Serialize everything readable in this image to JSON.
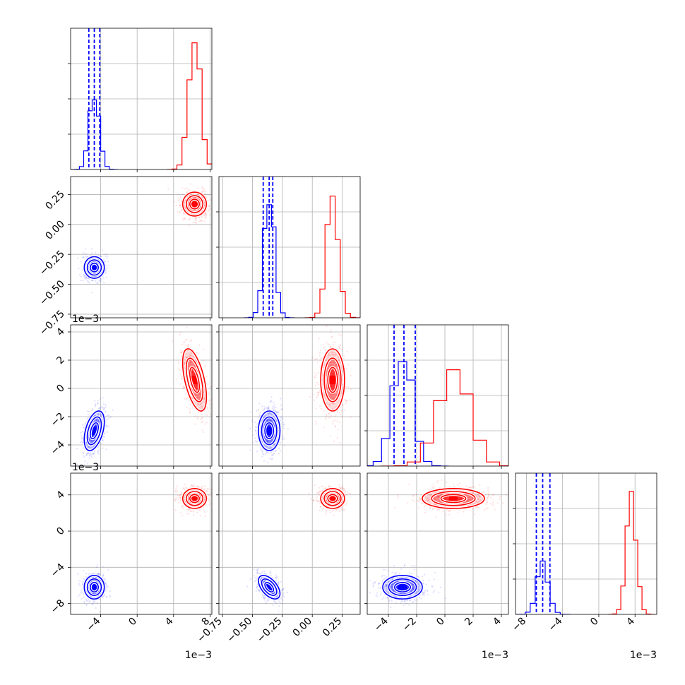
{
  "chart_data": {
    "type": "corner",
    "grid": true,
    "params": [
      {
        "ticks": [
          -4,
          0,
          4,
          8
        ],
        "tick_labels": [
          "−4",
          "0",
          "4",
          "8"
        ],
        "offset_text": "1e−3",
        "range": [
          -7.3,
          8.2
        ]
      },
      {
        "ticks": [
          -0.75,
          -0.5,
          -0.25,
          0.0,
          0.25
        ],
        "tick_labels": [
          "−0.75",
          "−0.50",
          "−0.25",
          "0.00",
          "0.25"
        ],
        "offset_text": "",
        "range": [
          -0.78,
          0.4
        ]
      },
      {
        "ticks": [
          -4,
          -2,
          0,
          2,
          4
        ],
        "tick_labels": [
          "−4",
          "−2",
          "0",
          "2",
          "4"
        ],
        "offset_text": "1e−3",
        "range": [
          -5.5,
          4.5
        ]
      },
      {
        "ticks": [
          -8,
          -4,
          0,
          4
        ],
        "tick_labels": [
          "−8",
          "−4",
          "0",
          "4"
        ],
        "offset_text": "1e−3",
        "range": [
          -9.2,
          6.4
        ]
      }
    ],
    "series": [
      {
        "color": "#0000ff",
        "means": [
          -4.7,
          -0.36,
          -3.0,
          -6.2
        ],
        "stds": [
          0.55,
          0.045,
          0.7,
          0.65
        ],
        "corr": [
          [
            1,
            0,
            0.45,
            0
          ],
          [
            0,
            1,
            0,
            -0.55
          ],
          [
            0.45,
            0,
            1,
            0
          ],
          [
            0,
            -0.55,
            0,
            1
          ]
        ],
        "quantiles": [
          [
            -5.3,
            -4.7,
            -4.1
          ],
          [
            -0.41,
            -0.36,
            -0.33
          ],
          [
            -3.6,
            -2.9,
            -2.1
          ],
          [
            -6.9,
            -6.2,
            -5.4
          ]
        ],
        "hist_peaks": [
          0.59,
          0.93,
          0.9,
          0.4
        ]
      },
      {
        "color": "#ff0000",
        "means": [
          6.3,
          0.17,
          0.6,
          3.6
        ],
        "stds": [
          0.65,
          0.05,
          1.1,
          0.55
        ],
        "corr": [
          [
            1,
            0,
            -0.55,
            0
          ],
          [
            0,
            1,
            0,
            0
          ],
          [
            -0.55,
            0,
            1,
            0
          ],
          [
            0,
            0,
            0,
            1
          ]
        ],
        "quantiles": [
          [
            5.7,
            6.3,
            6.9
          ],
          [
            0.12,
            0.17,
            0.22
          ],
          [
            -0.4,
            0.6,
            1.6
          ],
          [
            3.0,
            3.6,
            4.2
          ]
        ],
        "hist_peaks": [
          1.0,
          0.96,
          0.77,
          0.93
        ]
      }
    ]
  }
}
